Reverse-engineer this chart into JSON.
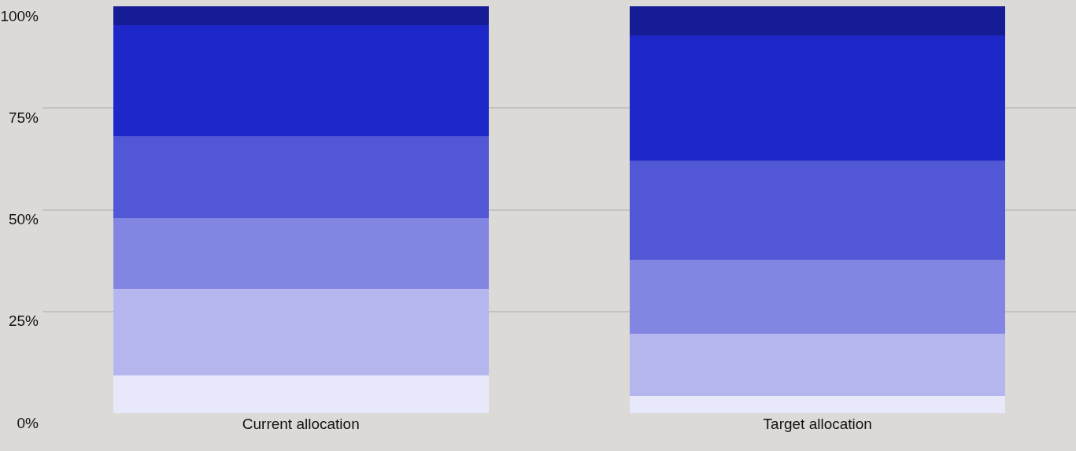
{
  "chart_data": {
    "type": "bar",
    "stacked": true,
    "categories": [
      "Current allocation",
      "Target allocation"
    ],
    "series": [
      {
        "color": "#e8e8fb",
        "values": [
          9.3,
          4.3
        ]
      },
      {
        "color": "#b6b6ef",
        "values": [
          21.3,
          15.3
        ]
      },
      {
        "color": "#8385e2",
        "values": [
          17.4,
          18.2
        ]
      },
      {
        "color": "#5257d5",
        "values": [
          20.1,
          24.2
        ]
      },
      {
        "color": "#1e27c8",
        "values": [
          27.3,
          30.9
        ]
      },
      {
        "color": "#161b96",
        "values": [
          4.6,
          7.1
        ]
      }
    ],
    "ylim": [
      0,
      100
    ],
    "yticks": [
      {
        "value": 0,
        "label": "0%"
      },
      {
        "value": 25,
        "label": "25%"
      },
      {
        "value": 50,
        "label": "50%"
      },
      {
        "value": 75,
        "label": "75%"
      },
      {
        "value": 100,
        "label": "100%"
      }
    ],
    "grid": "y"
  }
}
